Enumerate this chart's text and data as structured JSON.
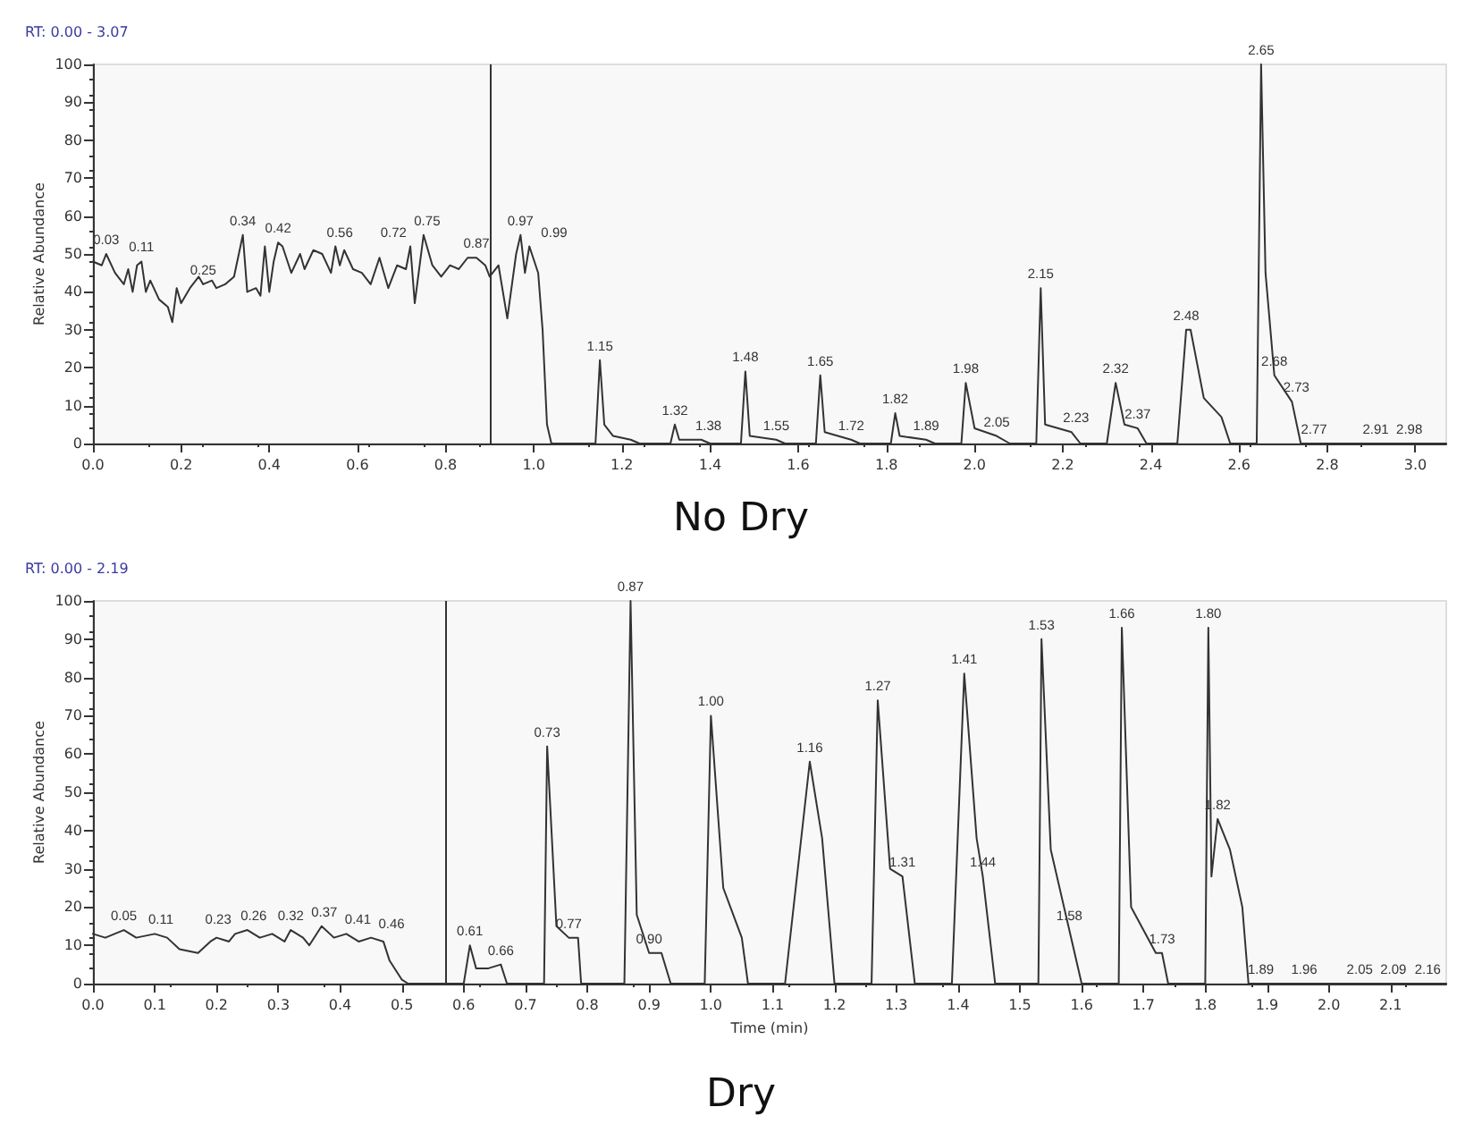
{
  "chart_data": [
    {
      "type": "line",
      "title": "No Dry",
      "ylabel": "Relative Abundance",
      "color": "#333333",
      "marker": "none",
      "line_style": "solid",
      "grid": false,
      "x": [
        0,
        0.02,
        0.03,
        0.05,
        0.07,
        0.08,
        0.09,
        0.1,
        0.11,
        0.12,
        0.13,
        0.15,
        0.17,
        0.18,
        0.19,
        0.2,
        0.22,
        0.24,
        0.25,
        0.27,
        0.28,
        0.3,
        0.32,
        0.34,
        0.35,
        0.37,
        0.38,
        0.39,
        0.4,
        0.41,
        0.42,
        0.43,
        0.45,
        0.47,
        0.48,
        0.5,
        0.52,
        0.54,
        0.55,
        0.56,
        0.57,
        0.59,
        0.61,
        0.63,
        0.65,
        0.67,
        0.69,
        0.71,
        0.72,
        0.73,
        0.75,
        0.77,
        0.79,
        0.81,
        0.83,
        0.85,
        0.87,
        0.89,
        0.9,
        0.92,
        0.94,
        0.96,
        0.97,
        0.98,
        0.99,
        1.01,
        1.02,
        1.03,
        1.04,
        1.14,
        1.15,
        1.16,
        1.18,
        1.22,
        1.24,
        1.31,
        1.32,
        1.33,
        1.38,
        1.4,
        1.47,
        1.48,
        1.49,
        1.55,
        1.57,
        1.64,
        1.65,
        1.66,
        1.72,
        1.74,
        1.81,
        1.82,
        1.83,
        1.89,
        1.91,
        1.97,
        1.98,
        2,
        2.05,
        2.08,
        2.14,
        2.15,
        2.16,
        2.22,
        2.24,
        2.3,
        2.32,
        2.34,
        2.37,
        2.39,
        2.46,
        2.48,
        2.49,
        2.52,
        2.56,
        2.58,
        2.64,
        2.65,
        2.66,
        2.68,
        2.72,
        2.74,
        2.77,
        3.07
      ],
      "values": [
        48,
        47,
        50,
        45,
        42,
        46,
        40,
        47,
        48,
        40,
        43,
        38,
        36,
        32,
        41,
        37,
        41,
        44,
        42,
        43,
        41,
        42,
        44,
        55,
        40,
        41,
        39,
        52,
        40,
        48,
        53,
        52,
        45,
        50,
        46,
        51,
        50,
        45,
        52,
        47,
        51,
        46,
        45,
        42,
        49,
        41,
        47,
        46,
        52,
        37,
        55,
        47,
        44,
        47,
        46,
        49,
        49,
        47,
        44,
        47,
        33,
        50,
        55,
        45,
        52,
        45,
        30,
        5,
        0,
        0,
        22,
        5,
        2,
        1,
        0,
        0,
        5,
        1,
        1,
        0,
        0,
        19,
        2,
        1,
        0,
        0,
        18,
        3,
        1,
        0,
        0,
        8,
        2,
        1,
        0,
        0,
        16,
        4,
        2,
        0,
        0,
        41,
        5,
        3,
        0,
        0,
        16,
        5,
        4,
        0,
        0,
        30,
        30,
        12,
        7,
        0,
        0,
        100,
        45,
        18,
        11,
        0,
        0,
        0
      ],
      "xlim": [
        0,
        3.07
      ],
      "xticks": [
        {
          "value": 0,
          "label": "0.0"
        },
        {
          "value": 0.2,
          "label": "0.2"
        },
        {
          "value": 0.4,
          "label": "0.4"
        },
        {
          "value": 0.6,
          "label": "0.6"
        },
        {
          "value": 0.8,
          "label": "0.8"
        },
        {
          "value": 1,
          "label": "1.0"
        },
        {
          "value": 1.2,
          "label": "1.2"
        },
        {
          "value": 1.4,
          "label": "1.4"
        },
        {
          "value": 1.6,
          "label": "1.6"
        },
        {
          "value": 1.8,
          "label": "1.8"
        },
        {
          "value": 2,
          "label": "2.0"
        },
        {
          "value": 2.2,
          "label": "2.2"
        },
        {
          "value": 2.4,
          "label": "2.4"
        },
        {
          "value": 2.6,
          "label": "2.6"
        },
        {
          "value": 2.8,
          "label": "2.8"
        },
        {
          "value": 3,
          "label": "3.0"
        }
      ],
      "ylim": [
        0,
        100
      ],
      "yticks": [
        0,
        10,
        20,
        30,
        40,
        50,
        60,
        70,
        80,
        90,
        100
      ],
      "ref_lines": [
        {
          "axis": "x",
          "value": 0.9,
          "label": null,
          "color": "#333333"
        }
      ],
      "annotations": [
        "RT: 0.00 - 3.07",
        {
          "text": "0.03",
          "x": 0.03,
          "y": 50
        },
        {
          "text": "0.11",
          "x": 0.11,
          "y": 48
        },
        {
          "text": "0.25",
          "x": 0.25,
          "y": 42
        },
        {
          "text": "0.34",
          "x": 0.34,
          "y": 55
        },
        {
          "text": "0.42",
          "x": 0.42,
          "y": 53
        },
        {
          "text": "0.56",
          "x": 0.56,
          "y": 52
        },
        {
          "text": "0.72",
          "x": 0.72,
          "y": 52
        },
        {
          "text": "0.75",
          "x": 0.75,
          "y": 55
        },
        {
          "text": "0.87",
          "x": 0.87,
          "y": 49
        },
        {
          "text": "0.97",
          "x": 0.97,
          "y": 55
        },
        {
          "text": "0.99",
          "x": 0.99,
          "y": 52
        },
        {
          "text": "1.15",
          "x": 1.15,
          "y": 22
        },
        {
          "text": "1.32",
          "x": 1.32,
          "y": 5
        },
        {
          "text": "1.38",
          "x": 1.38,
          "y": 1
        },
        {
          "text": "1.48",
          "x": 1.48,
          "y": 19
        },
        {
          "text": "1.55",
          "x": 1.55,
          "y": 1
        },
        {
          "text": "1.65",
          "x": 1.65,
          "y": 18
        },
        {
          "text": "1.72",
          "x": 1.72,
          "y": 1
        },
        {
          "text": "1.82",
          "x": 1.82,
          "y": 8
        },
        {
          "text": "1.89",
          "x": 1.89,
          "y": 1
        },
        {
          "text": "1.98",
          "x": 1.98,
          "y": 16
        },
        {
          "text": "2.05",
          "x": 2.05,
          "y": 2
        },
        {
          "text": "2.15",
          "x": 2.15,
          "y": 41
        },
        {
          "text": "2.23",
          "x": 2.23,
          "y": 3
        },
        {
          "text": "2.32",
          "x": 2.32,
          "y": 16
        },
        {
          "text": "2.37",
          "x": 2.37,
          "y": 4
        },
        {
          "text": "2.48",
          "x": 2.48,
          "y": 30
        },
        {
          "text": "2.65",
          "x": 2.65,
          "y": 100
        },
        {
          "text": "2.68",
          "x": 2.68,
          "y": 18
        },
        {
          "text": "2.73",
          "x": 2.73,
          "y": 11
        },
        {
          "text": "2.77",
          "x": 2.77,
          "y": 0
        },
        {
          "text": "2.91",
          "x": 2.91,
          "y": 0
        },
        {
          "text": "2.98",
          "x": 2.98,
          "y": 0
        }
      ]
    },
    {
      "type": "line",
      "title": "Dry",
      "ylabel": "Relative Abundance",
      "xlabel": "Time (min)",
      "color": "#333333",
      "marker": "none",
      "line_style": "solid",
      "grid": false,
      "x": [
        0,
        0.02,
        0.05,
        0.07,
        0.1,
        0.12,
        0.14,
        0.17,
        0.19,
        0.2,
        0.22,
        0.23,
        0.25,
        0.27,
        0.29,
        0.31,
        0.32,
        0.34,
        0.35,
        0.37,
        0.39,
        0.41,
        0.43,
        0.45,
        0.47,
        0.48,
        0.5,
        0.51,
        0.6,
        0.61,
        0.62,
        0.64,
        0.66,
        0.67,
        0.73,
        0.735,
        0.75,
        0.77,
        0.785,
        0.79,
        0.86,
        0.87,
        0.88,
        0.9,
        0.92,
        0.935,
        0.99,
        1,
        1.02,
        1.05,
        1.06,
        1.12,
        1.16,
        1.18,
        1.2,
        1.26,
        1.27,
        1.29,
        1.31,
        1.33,
        1.39,
        1.41,
        1.43,
        1.44,
        1.46,
        1.53,
        1.535,
        1.55,
        1.58,
        1.6,
        1.66,
        1.665,
        1.68,
        1.72,
        1.73,
        1.74,
        1.8,
        1.805,
        1.81,
        1.82,
        1.84,
        1.86,
        1.87,
        2.19
      ],
      "values": [
        13,
        12,
        14,
        12,
        13,
        12,
        9,
        8,
        11,
        12,
        11,
        13,
        14,
        12,
        13,
        11,
        14,
        12,
        10,
        15,
        12,
        13,
        11,
        12,
        11,
        6,
        1,
        0,
        0,
        10,
        4,
        4,
        5,
        0,
        0,
        62,
        15,
        12,
        12,
        0,
        0,
        100,
        18,
        8,
        8,
        0,
        0,
        70,
        25,
        12,
        0,
        0,
        58,
        38,
        0,
        0,
        74,
        30,
        28,
        0,
        0,
        81,
        38,
        28,
        0,
        0,
        90,
        35,
        14,
        0,
        0,
        93,
        20,
        8,
        8,
        0,
        0,
        93,
        28,
        43,
        35,
        20,
        0,
        0
      ],
      "xlim": [
        0,
        2.19
      ],
      "xticks": [
        {
          "value": 0,
          "label": "0.0"
        },
        {
          "value": 0.1,
          "label": "0.1"
        },
        {
          "value": 0.2,
          "label": "0.2"
        },
        {
          "value": 0.3,
          "label": "0.3"
        },
        {
          "value": 0.4,
          "label": "0.4"
        },
        {
          "value": 0.5,
          "label": "0.5"
        },
        {
          "value": 0.6,
          "label": "0.6"
        },
        {
          "value": 0.7,
          "label": "0.7"
        },
        {
          "value": 0.8,
          "label": "0.8"
        },
        {
          "value": 0.9,
          "label": "0.9"
        },
        {
          "value": 1,
          "label": "1.0"
        },
        {
          "value": 1.1,
          "label": "1.1"
        },
        {
          "value": 1.2,
          "label": "1.2"
        },
        {
          "value": 1.3,
          "label": "1.3"
        },
        {
          "value": 1.4,
          "label": "1.4"
        },
        {
          "value": 1.5,
          "label": "1.5"
        },
        {
          "value": 1.6,
          "label": "1.6"
        },
        {
          "value": 1.7,
          "label": "1.7"
        },
        {
          "value": 1.8,
          "label": "1.8"
        },
        {
          "value": 1.9,
          "label": "1.9"
        },
        {
          "value": 2,
          "label": "2.0"
        },
        {
          "value": 2.1,
          "label": "2.1"
        }
      ],
      "ylim": [
        0,
        100
      ],
      "yticks": [
        0,
        10,
        20,
        30,
        40,
        50,
        60,
        70,
        80,
        90,
        100
      ],
      "ref_lines": [
        {
          "axis": "x",
          "value": 0.575,
          "label": null,
          "color": "#333333"
        }
      ],
      "annotations": [
        "RT: 0.00 - 2.19",
        {
          "text": "0.05",
          "x": 0.05,
          "y": 14
        },
        {
          "text": "0.11",
          "x": 0.11,
          "y": 13
        },
        {
          "text": "0.23",
          "x": 0.23,
          "y": 13
        },
        {
          "text": "0.26",
          "x": 0.26,
          "y": 14
        },
        {
          "text": "0.32",
          "x": 0.32,
          "y": 14
        },
        {
          "text": "0.37",
          "x": 0.37,
          "y": 15
        },
        {
          "text": "0.41",
          "x": 0.41,
          "y": 13
        },
        {
          "text": "0.46",
          "x": 0.46,
          "y": 12
        },
        {
          "text": "0.61",
          "x": 0.61,
          "y": 10
        },
        {
          "text": "0.66",
          "x": 0.66,
          "y": 5
        },
        {
          "text": "0.73",
          "x": 0.735,
          "y": 62
        },
        {
          "text": "0.77",
          "x": 0.77,
          "y": 12
        },
        {
          "text": "0.87",
          "x": 0.87,
          "y": 100
        },
        {
          "text": "0.90",
          "x": 0.9,
          "y": 8
        },
        {
          "text": "1.00",
          "x": 1,
          "y": 70
        },
        {
          "text": "1.16",
          "x": 1.16,
          "y": 58
        },
        {
          "text": "1.27",
          "x": 1.27,
          "y": 74
        },
        {
          "text": "1.31",
          "x": 1.31,
          "y": 28
        },
        {
          "text": "1.41",
          "x": 1.41,
          "y": 81
        },
        {
          "text": "1.44",
          "x": 1.44,
          "y": 28
        },
        {
          "text": "1.53",
          "x": 1.535,
          "y": 90
        },
        {
          "text": "1.58",
          "x": 1.58,
          "y": 14
        },
        {
          "text": "1.66",
          "x": 1.665,
          "y": 93
        },
        {
          "text": "1.73",
          "x": 1.73,
          "y": 8
        },
        {
          "text": "1.80",
          "x": 1.805,
          "y": 93
        },
        {
          "text": "1.82",
          "x": 1.82,
          "y": 43
        },
        {
          "text": "1.89",
          "x": 1.89,
          "y": 0
        },
        {
          "text": "1.96",
          "x": 1.96,
          "y": 0
        },
        {
          "text": "2.05",
          "x": 2.05,
          "y": 0
        },
        {
          "text": "2.09",
          "x": 2.09,
          "y": 0
        },
        {
          "text": "2.16",
          "x": 2.16,
          "y": 0
        }
      ]
    }
  ]
}
